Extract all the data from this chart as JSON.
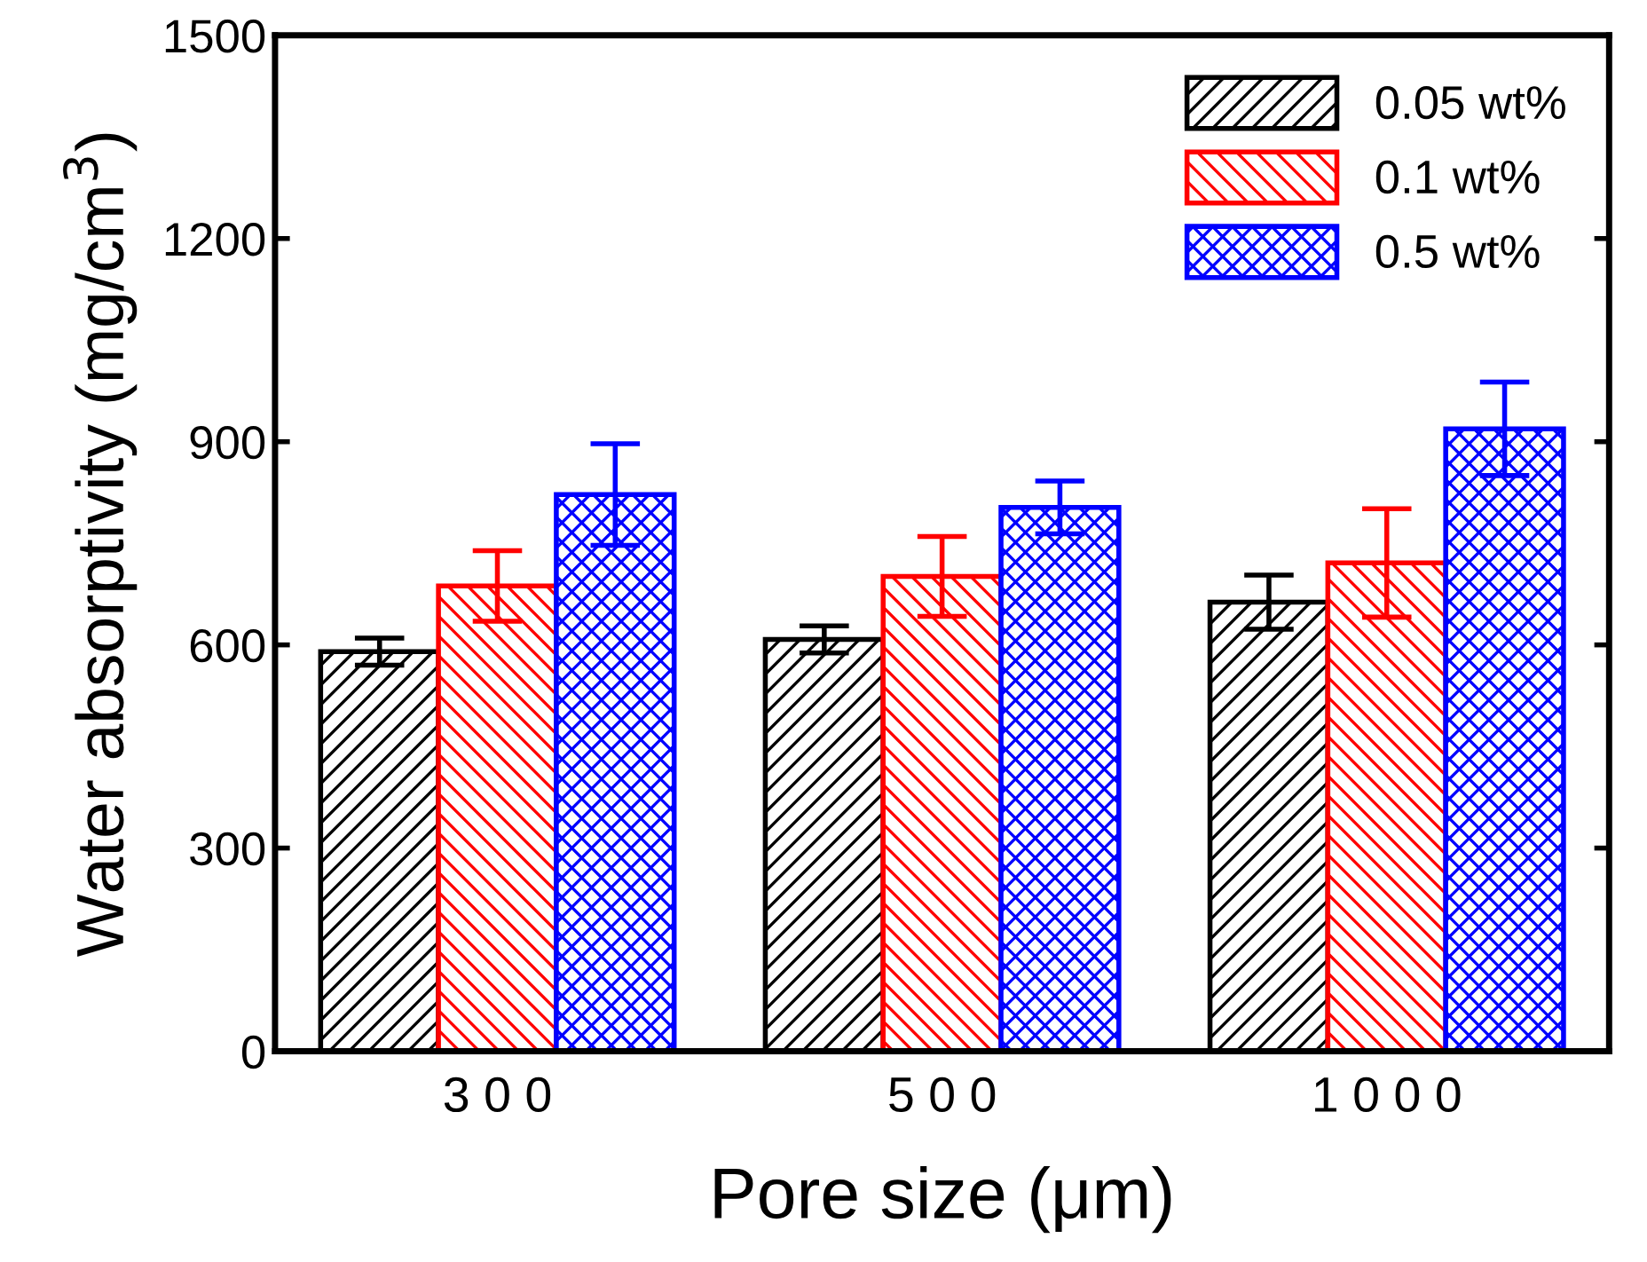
{
  "chart_data": {
    "type": "bar",
    "xlabel": "Pore size (μm)",
    "ylabel": "Water absorptivity (mg/cm$^{3}$)",
    "categories": [
      "3 0 0",
      "5 0 0",
      "1 0 0 0"
    ],
    "series": [
      {
        "name": "0.05 wt%",
        "color": "#000000",
        "values": [
          590,
          608,
          663
        ],
        "errors": [
          20,
          20,
          40
        ]
      },
      {
        "name": "0.1 wt%",
        "color": "#ff0000",
        "values": [
          687,
          701,
          721
        ],
        "errors": [
          52,
          59,
          80
        ]
      },
      {
        "name": "0.5 wt%",
        "color": "#0000ff",
        "values": [
          822,
          803,
          919
        ],
        "errors": [
          75,
          39,
          69
        ]
      }
    ],
    "ylim": [
      0,
      1500
    ],
    "yticks": [
      0,
      300,
      600,
      900,
      1200,
      1500
    ],
    "grid": false,
    "legend": "top right"
  }
}
